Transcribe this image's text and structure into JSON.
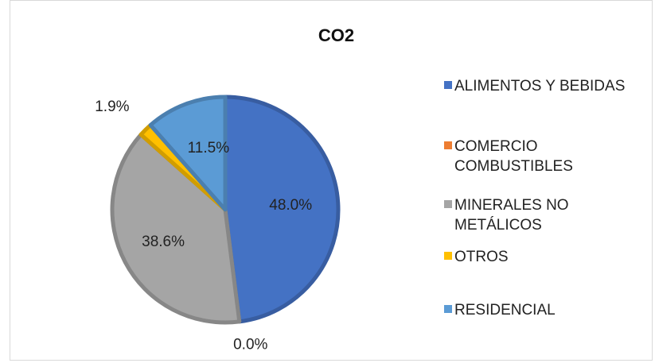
{
  "chart_data": {
    "type": "pie",
    "title": "CO2",
    "categories": [
      "ALIMENTOS Y BEBIDAS",
      "COMERCIO COMBUSTIBLES",
      "MINERALES NO METÁLICOS",
      "OTROS",
      "RESIDENCIAL"
    ],
    "values": [
      48.0,
      0.0,
      38.6,
      1.9,
      11.5
    ],
    "data_labels": [
      "48.0%",
      "0.0%",
      "38.6%",
      "1.9%",
      "11.5%"
    ],
    "colors": [
      "#4472c4",
      "#ed7d31",
      "#a5a5a5",
      "#ffc000",
      "#5b9bd5"
    ],
    "legend_labels": [
      "ALIMENTOS Y BEBIDAS",
      "COMERCIO\nCOMBUSTIBLES",
      "MINERALES NO\nMETÁLICOS",
      "OTROS",
      "RESIDENCIAL"
    ],
    "legend_position": "right"
  }
}
